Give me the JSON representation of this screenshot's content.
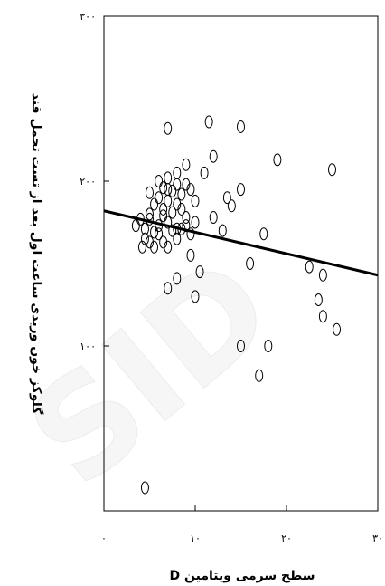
{
  "chart_data": {
    "type": "scatter",
    "title": "",
    "xlabel": "سطح سرمی ویتامین D",
    "ylabel": "گلوکز خون وریدی ساعت اول بعد از تست تحمل قند",
    "xlim": [
      0,
      30
    ],
    "ylim": [
      0,
      300
    ],
    "xticks": [
      0,
      10,
      20,
      30
    ],
    "xtick_labels": [
      "۰",
      "۱۰",
      "۲۰",
      "۳۰"
    ],
    "yticks": [
      100,
      200,
      300
    ],
    "ytick_labels": [
      "۱۰۰",
      "۲۰۰",
      "۳۰۰"
    ],
    "grid": false,
    "watermark": "SID",
    "series": [
      {
        "marker": "open-circle",
        "points": [
          [
            4.0,
            177
          ],
          [
            3.5,
            173
          ],
          [
            5.0,
            180
          ],
          [
            5.5,
            186
          ],
          [
            6.0,
            190
          ],
          [
            6.5,
            183
          ],
          [
            7.0,
            188
          ],
          [
            7.5,
            194
          ],
          [
            8.0,
            186
          ],
          [
            8.5,
            192
          ],
          [
            9.0,
            198
          ],
          [
            9.5,
            195
          ],
          [
            10.0,
            188
          ],
          [
            4.5,
            165
          ],
          [
            4.2,
            160
          ],
          [
            5.0,
            163
          ],
          [
            5.5,
            160
          ],
          [
            6.0,
            168
          ],
          [
            6.5,
            163
          ],
          [
            7.0,
            160
          ],
          [
            7.5,
            170
          ],
          [
            8.0,
            165
          ],
          [
            8.5,
            171
          ],
          [
            9.0,
            173
          ],
          [
            9.5,
            168
          ],
          [
            10.0,
            175
          ],
          [
            4.5,
            171
          ],
          [
            5.0,
            177
          ],
          [
            5.5,
            169
          ],
          [
            6.0,
            173
          ],
          [
            6.5,
            179
          ],
          [
            7.0,
            175
          ],
          [
            7.5,
            181
          ],
          [
            8.0,
            171
          ],
          [
            8.5,
            183
          ],
          [
            9.0,
            178
          ],
          [
            5.0,
            193
          ],
          [
            6.0,
            200
          ],
          [
            7.0,
            202
          ],
          [
            8.0,
            205
          ],
          [
            9.0,
            210
          ],
          [
            6.5,
            196
          ],
          [
            7.0,
            195
          ],
          [
            8.0,
            198
          ],
          [
            11.0,
            205
          ],
          [
            12.0,
            215
          ],
          [
            12.0,
            178
          ],
          [
            13.0,
            170
          ],
          [
            14.0,
            185
          ],
          [
            15.0,
            195
          ],
          [
            13.5,
            190
          ],
          [
            16.0,
            150
          ],
          [
            17.5,
            168
          ],
          [
            7.0,
            232
          ],
          [
            11.5,
            236
          ],
          [
            15.0,
            233
          ],
          [
            19.0,
            213
          ],
          [
            25.0,
            207
          ],
          [
            9.5,
            155
          ],
          [
            8.0,
            141
          ],
          [
            10.5,
            145
          ],
          [
            10.0,
            130
          ],
          [
            7.0,
            135
          ],
          [
            22.5,
            148
          ],
          [
            24.0,
            143
          ],
          [
            23.5,
            128
          ],
          [
            24.0,
            118
          ],
          [
            25.5,
            110
          ],
          [
            15.0,
            100
          ],
          [
            18.0,
            100
          ],
          [
            17.0,
            82
          ],
          [
            4.5,
            14
          ]
        ]
      }
    ],
    "regression_line": {
      "x": [
        0,
        30
      ],
      "y": [
        182,
        143
      ]
    }
  }
}
